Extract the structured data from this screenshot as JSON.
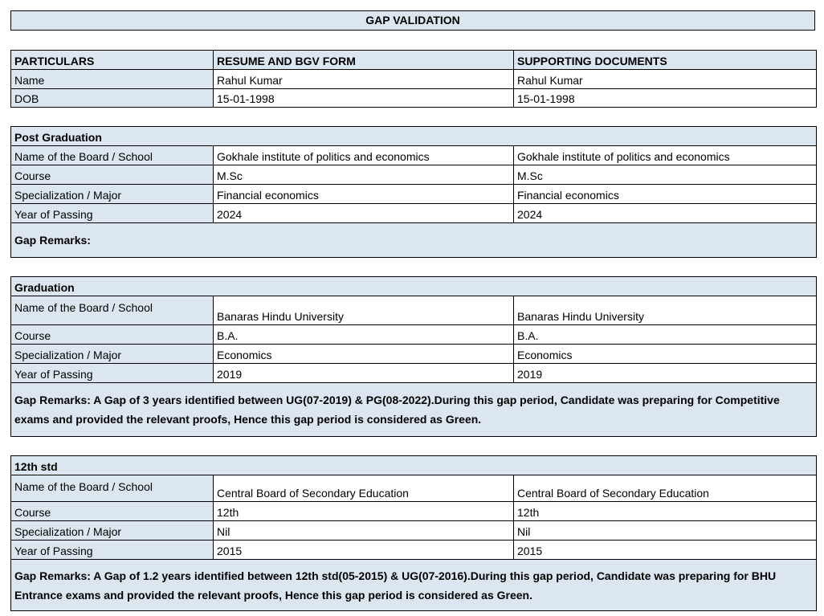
{
  "title": "GAP VALIDATION",
  "colors": {
    "header_bg": "#dce6f1",
    "border": "#000000"
  },
  "summary": {
    "headers": [
      "PARTICULARS",
      "RESUME AND BGV FORM",
      "SUPPORTING DOCUMENTS"
    ],
    "rows": [
      [
        "Name",
        "Rahul Kumar",
        "Rahul Kumar"
      ],
      [
        "DOB",
        "15-01-1998",
        "15-01-1998"
      ]
    ]
  },
  "sections": [
    {
      "heading": "Post Graduation",
      "rows": [
        [
          "Name of the Board / School",
          "Gokhale institute of politics and economics",
          "Gokhale institute of politics and economics"
        ],
        [
          "Course",
          "M.Sc",
          "M.Sc"
        ],
        [
          "Specialization / Major",
          "Financial economics",
          "Financial economics"
        ],
        [
          "Year of Passing",
          "2024",
          "2024"
        ]
      ],
      "remarks": "Gap Remarks:"
    },
    {
      "heading": "Graduation",
      "rows": [
        [
          "Name of the Board / School",
          "Banaras Hindu University",
          "Banaras Hindu University"
        ],
        [
          "Course",
          "B.A.",
          "B.A."
        ],
        [
          "Specialization / Major",
          "Economics",
          "Economics"
        ],
        [
          "Year of Passing",
          "2019",
          "2019"
        ]
      ],
      "remarks": "Gap Remarks: A Gap of 3 years identified between UG(07-2019) & PG(08-2022).During this gap period, Candidate was preparing for Competitive exams and provided the relevant proofs, Hence this gap period is considered as Green."
    },
    {
      "heading": "12th std",
      "rows": [
        [
          "Name of the Board / School",
          "Central Board of Secondary Education",
          "Central Board of Secondary Education"
        ],
        [
          "Course",
          "12th",
          "12th"
        ],
        [
          "Specialization / Major",
          "Nil",
          "Nil"
        ],
        [
          "Year of Passing",
          "2015",
          "2015"
        ]
      ],
      "remarks": "Gap Remarks: A Gap of 1.2 years identified between 12th std(05-2015) & UG(07-2016).During this gap period, Candidate was preparing for BHU Entrance exams and provided the relevant proofs, Hence this gap period is considered as Green."
    }
  ]
}
